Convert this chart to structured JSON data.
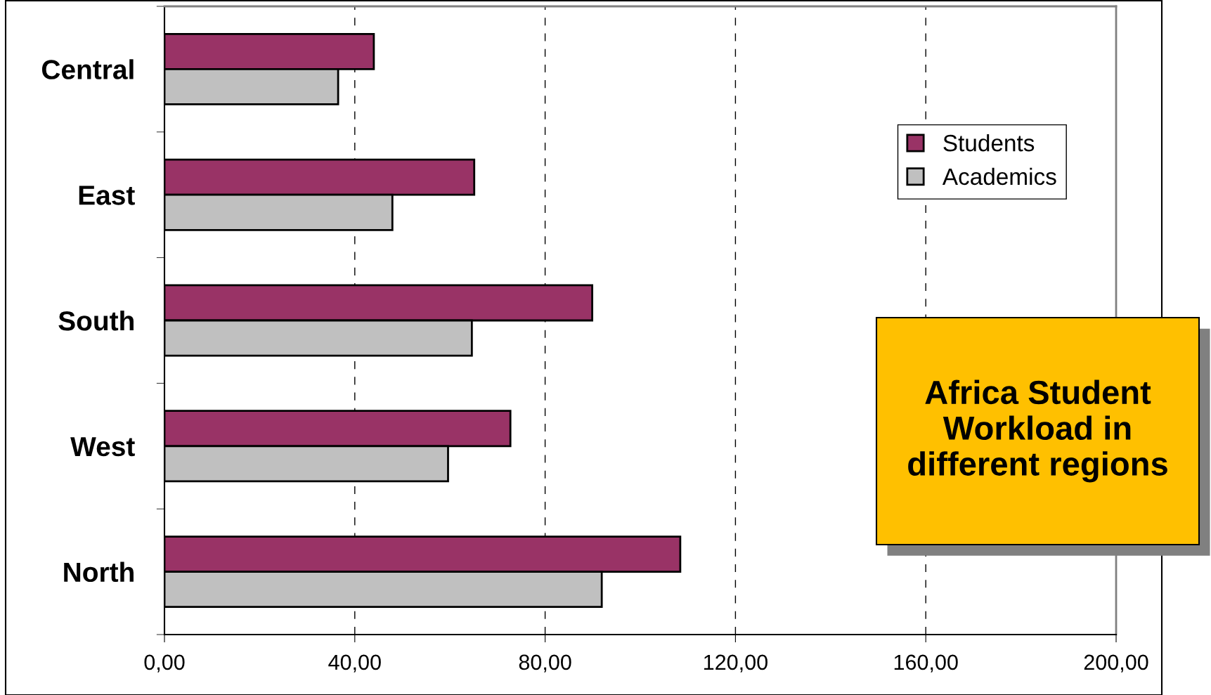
{
  "chart_data": {
    "type": "bar",
    "orientation": "horizontal",
    "title": "Africa Student Workload in different regions",
    "categories": [
      "Central",
      "East",
      "South",
      "West",
      "North"
    ],
    "series": [
      {
        "name": "Students",
        "color": "#993366",
        "values": [
          44.0,
          65.1,
          89.9,
          72.7,
          108.4
        ]
      },
      {
        "name": "Academics",
        "color": "#c0c0c0",
        "values": [
          36.5,
          47.9,
          64.6,
          59.6,
          91.9
        ]
      }
    ],
    "xlim": [
      0,
      200
    ],
    "xticks": [
      {
        "value": 0,
        "label": "0,00"
      },
      {
        "value": 40,
        "label": "40,00"
      },
      {
        "value": 80,
        "label": "80,00"
      },
      {
        "value": 120,
        "label": "120,00"
      },
      {
        "value": 160,
        "label": "160,00"
      },
      {
        "value": 200,
        "label": "200,00"
      }
    ],
    "grid": "x",
    "legend": "top right"
  }
}
